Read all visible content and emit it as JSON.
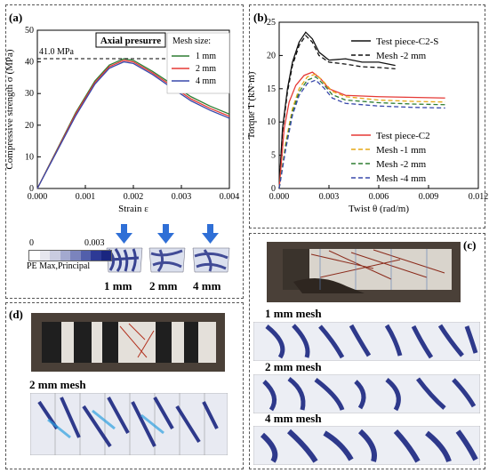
{
  "panels": {
    "a": "(a)",
    "b": "(b)",
    "c": "(c)",
    "d": "(d)"
  },
  "chart_data": [
    {
      "id": "a",
      "type": "line",
      "xlabel": "Strain ε",
      "ylabel": "Compressive strength σ (MPa)",
      "xlim": [
        0,
        0.004
      ],
      "ylim": [
        0,
        50
      ],
      "xticks": [
        "0.000",
        "0.001",
        "0.002",
        "0.003",
        "0.004"
      ],
      "yticks": [
        "0",
        "10",
        "20",
        "30",
        "40",
        "50"
      ],
      "annotation": "41.0 MPa",
      "ref_line_y": 41.0,
      "title_box": "Axial presurre",
      "legend_title": "Mesh size:",
      "legend_position": "top-right",
      "series": [
        {
          "name": "1 mm",
          "color": "#2e7d32",
          "x": [
            0,
            0.0004,
            0.0008,
            0.0012,
            0.0015,
            0.0018,
            0.002,
            0.0024,
            0.0028,
            0.0032,
            0.0036,
            0.004
          ],
          "y": [
            0,
            12,
            24,
            34,
            39,
            41,
            40.5,
            37,
            33,
            29,
            26,
            23.5
          ]
        },
        {
          "name": "2 mm",
          "color": "#e53935",
          "x": [
            0,
            0.0004,
            0.0008,
            0.0012,
            0.0015,
            0.0018,
            0.002,
            0.0024,
            0.0028,
            0.0032,
            0.0036,
            0.004
          ],
          "y": [
            0,
            11.8,
            23.6,
            33.5,
            38.5,
            40.5,
            40,
            36.5,
            32.4,
            28.3,
            25.3,
            22.8
          ]
        },
        {
          "name": "4 mm",
          "color": "#3949ab",
          "x": [
            0,
            0.0004,
            0.0008,
            0.0012,
            0.0015,
            0.0018,
            0.002,
            0.0024,
            0.0028,
            0.0032,
            0.0036,
            0.004
          ],
          "y": [
            0,
            11.5,
            23,
            33,
            38,
            40,
            39.5,
            36,
            31.8,
            27.7,
            24.7,
            22.2
          ]
        }
      ]
    },
    {
      "id": "b",
      "type": "line",
      "xlabel": "Twist θ (rad/m)",
      "ylabel": "Torque T (kN·m)",
      "xlim": [
        0,
        0.012
      ],
      "ylim": [
        0,
        25
      ],
      "xticks": [
        "0.000",
        "0.003",
        "0.006",
        "0.009",
        "0.012"
      ],
      "yticks": [
        "0",
        "5",
        "10",
        "15",
        "20",
        "25"
      ],
      "legend_position": "top-right and bottom-right",
      "series": [
        {
          "name": "Test piece-C2-S",
          "color": "#111111",
          "dash": "",
          "x": [
            0,
            0.0002,
            0.0005,
            0.0008,
            0.0012,
            0.0016,
            0.002,
            0.0024,
            0.003,
            0.004,
            0.005,
            0.006,
            0.007
          ],
          "y": [
            0,
            9,
            15,
            19,
            22,
            23.5,
            22.5,
            20.5,
            19.3,
            19.5,
            19,
            19,
            18.5
          ]
        },
        {
          "name": "Mesh -2 mm",
          "color": "#111111",
          "dash": "5,3",
          "x": [
            0,
            0.0002,
            0.0005,
            0.0008,
            0.0012,
            0.0016,
            0.002,
            0.0024,
            0.003,
            0.004,
            0.005,
            0.006,
            0.007
          ],
          "y": [
            0,
            8.5,
            14.5,
            18.5,
            21.5,
            23,
            22,
            20,
            19,
            18.7,
            18.3,
            18.2,
            18
          ]
        },
        {
          "name": "Test piece-C2",
          "color": "#e53935",
          "dash": "",
          "x": [
            0,
            0.0003,
            0.0006,
            0.001,
            0.0015,
            0.002,
            0.0025,
            0.003,
            0.004,
            0.006,
            0.008,
            0.01
          ],
          "y": [
            0,
            9,
            13,
            15.5,
            17,
            17.5,
            16.5,
            15,
            14,
            13.8,
            13.7,
            13.6
          ]
        },
        {
          "name": "Mesh -1 mm",
          "color": "#e6a817",
          "dash": "5,3",
          "x": [
            0,
            0.0004,
            0.0008,
            0.0012,
            0.0017,
            0.0022,
            0.0027,
            0.0032,
            0.004,
            0.006,
            0.008,
            0.01
          ],
          "y": [
            0,
            7,
            12,
            15,
            16.8,
            17.2,
            16,
            14.6,
            13.8,
            13.3,
            13.1,
            13
          ]
        },
        {
          "name": "Mesh -2 mm",
          "color": "#2e7d32",
          "dash": "5,3",
          "x": [
            0,
            0.0004,
            0.0008,
            0.0012,
            0.0017,
            0.0022,
            0.0027,
            0.0032,
            0.004,
            0.006,
            0.008,
            0.01
          ],
          "y": [
            0,
            6.5,
            11.5,
            14.5,
            16.3,
            16.8,
            15.6,
            14.1,
            13.3,
            12.9,
            12.7,
            12.6
          ]
        },
        {
          "name": "Mesh -4 mm",
          "color": "#3949ab",
          "dash": "5,3",
          "x": [
            0,
            0.0004,
            0.0008,
            0.0012,
            0.0017,
            0.0022,
            0.0027,
            0.0032,
            0.004,
            0.006,
            0.008,
            0.01
          ],
          "y": [
            0,
            6,
            11,
            14,
            15.8,
            16.3,
            15.1,
            13.6,
            12.8,
            12.4,
            12.2,
            12.1
          ]
        }
      ]
    }
  ],
  "colorbar": {
    "min": "0",
    "max": "0.003",
    "label": "PE Max,Principal",
    "colors": [
      "#ffffff",
      "#e6e6ee",
      "#c9cce0",
      "#a3a9cf",
      "#7b84bd",
      "#525fab",
      "#2d3a96",
      "#1a2680"
    ]
  },
  "mesh_captions": [
    "1 mm",
    "2 mm",
    "4 mm"
  ],
  "panel_c": {
    "captions": [
      "1 mm mesh",
      "2 mm mesh",
      "4 mm mesh"
    ]
  },
  "panel_d": {
    "caption": "2 mm mesh"
  }
}
